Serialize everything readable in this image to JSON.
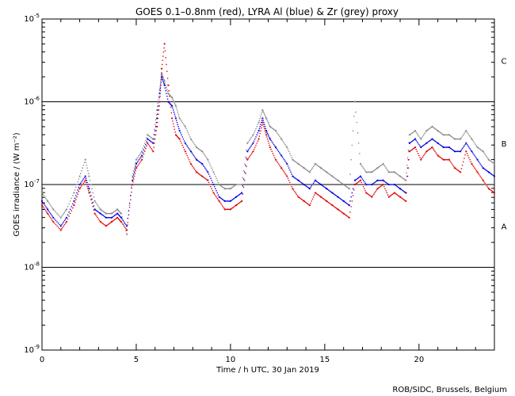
{
  "chart_data": {
    "type": "scatter",
    "title": "GOES 0.1–0.8nm (red), LYRA Al (blue) & Zr (grey) proxy",
    "xlabel": "Time / h UTC, 30 Jan 2019",
    "ylabel": "GOES irradiance / (W m⁻²)",
    "xlim": [
      0,
      24
    ],
    "ylim_log10": [
      -9,
      -5
    ],
    "x_ticks": [
      0,
      5,
      10,
      15,
      20
    ],
    "x_tick_labels": [
      "0",
      "5",
      "10",
      "15",
      "20"
    ],
    "y_ticks_log10": [
      -9,
      -8,
      -7,
      -6,
      -5
    ],
    "y_tick_labels": [
      {
        "base": "10",
        "exp": "-9"
      },
      {
        "base": "10",
        "exp": "-8"
      },
      {
        "base": "10",
        "exp": "-7"
      },
      {
        "base": "10",
        "exp": "-6"
      },
      {
        "base": "10",
        "exp": "-5"
      }
    ],
    "class_lines_log10": [
      -8,
      -7,
      -6
    ],
    "class_labels": [
      {
        "label": "A",
        "log10": -7.5
      },
      {
        "label": "B",
        "log10": -6.5
      },
      {
        "label": "C",
        "log10": -5.5
      }
    ],
    "series": [
      {
        "name": "GOES 0.1-0.8nm",
        "color": "#e00000",
        "x": [
          0,
          0.3,
          0.6,
          1.0,
          1.3,
          1.7,
          2.0,
          2.3,
          2.5,
          2.8,
          3.1,
          3.4,
          3.7,
          4.0,
          4.2,
          4.5,
          4.8,
          5.0,
          5.3,
          5.6,
          5.9,
          6.1,
          6.25,
          6.35,
          6.5,
          6.7,
          6.9,
          7.1,
          7.3,
          7.6,
          7.9,
          8.2,
          8.5,
          8.8,
          9.1,
          9.4,
          9.7,
          10.0,
          10.3,
          10.6,
          10.9,
          11.2,
          11.5,
          11.7,
          11.9,
          12.1,
          12.4,
          12.7,
          13.0,
          13.3,
          13.6,
          13.9,
          14.2,
          14.5,
          14.8,
          15.1,
          15.4,
          15.7,
          16.0,
          16.3,
          16.6,
          16.9,
          17.2,
          17.5,
          17.8,
          18.1,
          18.4,
          18.7,
          19.0,
          19.3,
          19.5,
          19.8,
          20.1,
          20.4,
          20.7,
          21.0,
          21.3,
          21.6,
          21.9,
          22.2,
          22.5,
          22.8,
          23.1,
          23.4,
          23.7,
          24.0
        ],
        "y_log10": [
          -7.25,
          -7.35,
          -7.45,
          -7.55,
          -7.45,
          -7.25,
          -7.05,
          -6.95,
          -7.1,
          -7.35,
          -7.45,
          -7.5,
          -7.45,
          -7.4,
          -7.45,
          -7.55,
          -7.0,
          -6.8,
          -6.7,
          -6.5,
          -6.6,
          -6.3,
          -6.0,
          -5.6,
          -5.3,
          -5.8,
          -6.2,
          -6.4,
          -6.45,
          -6.6,
          -6.75,
          -6.85,
          -6.9,
          -6.95,
          -7.1,
          -7.2,
          -7.3,
          -7.3,
          -7.25,
          -7.2,
          -6.7,
          -6.6,
          -6.45,
          -6.25,
          -6.4,
          -6.55,
          -6.7,
          -6.8,
          -6.9,
          -7.05,
          -7.15,
          -7.2,
          -7.25,
          -7.1,
          -7.15,
          -7.2,
          -7.25,
          -7.3,
          -7.35,
          -7.4,
          -7.0,
          -6.95,
          -7.1,
          -7.15,
          -7.05,
          -7.0,
          -7.15,
          -7.1,
          -7.15,
          -7.2,
          -6.6,
          -6.55,
          -6.7,
          -6.6,
          -6.55,
          -6.65,
          -6.7,
          -6.7,
          -6.8,
          -6.85,
          -6.6,
          -6.75,
          -6.85,
          -6.95,
          -7.05,
          -7.1
        ]
      },
      {
        "name": "LYRA Al proxy",
        "color": "#0000e0",
        "x": [
          0,
          0.3,
          0.6,
          1.0,
          1.3,
          1.7,
          2.0,
          2.3,
          2.5,
          2.8,
          3.1,
          3.4,
          3.7,
          4.0,
          4.2,
          4.5,
          4.8,
          5.0,
          5.3,
          5.6,
          5.9,
          6.1,
          6.25,
          6.35,
          6.5,
          6.7,
          6.9,
          7.1,
          7.3,
          7.6,
          7.9,
          8.2,
          8.5,
          8.8,
          9.1,
          9.4,
          9.7,
          10.0,
          10.3,
          10.6,
          10.9,
          11.2,
          11.5,
          11.7,
          11.9,
          12.1,
          12.4,
          12.7,
          13.0,
          13.3,
          13.6,
          13.9,
          14.2,
          14.5,
          14.8,
          15.1,
          15.4,
          15.7,
          16.0,
          16.3,
          16.6,
          16.9,
          17.2,
          17.5,
          17.8,
          18.1,
          18.4,
          18.7,
          19.0,
          19.3,
          19.5,
          19.8,
          20.1,
          20.4,
          20.7,
          21.0,
          21.3,
          21.6,
          21.9,
          22.2,
          22.5,
          22.8,
          23.1,
          23.4,
          23.7,
          24.0
        ],
        "y_log10": [
          -7.2,
          -7.3,
          -7.4,
          -7.5,
          -7.4,
          -7.2,
          -7.0,
          -6.9,
          -7.05,
          -7.3,
          -7.35,
          -7.4,
          -7.4,
          -7.35,
          -7.4,
          -7.5,
          -6.95,
          -6.75,
          -6.65,
          -6.45,
          -6.5,
          -6.2,
          -5.9,
          -5.7,
          -5.8,
          -6.0,
          -6.05,
          -6.2,
          -6.35,
          -6.5,
          -6.6,
          -6.7,
          -6.75,
          -6.85,
          -7.0,
          -7.15,
          -7.2,
          -7.2,
          -7.15,
          -7.1,
          -6.6,
          -6.5,
          -6.35,
          -6.2,
          -6.35,
          -6.45,
          -6.55,
          -6.65,
          -6.75,
          -6.9,
          -6.95,
          -7.0,
          -7.05,
          -6.95,
          -7.0,
          -7.05,
          -7.1,
          -7.15,
          -7.2,
          -7.25,
          -6.95,
          -6.9,
          -7.0,
          -7.0,
          -6.95,
          -6.95,
          -7.0,
          -7.0,
          -7.05,
          -7.1,
          -6.5,
          -6.45,
          -6.55,
          -6.5,
          -6.45,
          -6.5,
          -6.55,
          -6.55,
          -6.6,
          -6.6,
          -6.5,
          -6.6,
          -6.7,
          -6.8,
          -6.85,
          -6.9
        ]
      },
      {
        "name": "LYRA Zr proxy",
        "color": "#888888",
        "x": [
          0,
          0.3,
          0.6,
          1.0,
          1.3,
          1.7,
          2.0,
          2.3,
          2.5,
          2.8,
          3.1,
          3.4,
          3.7,
          4.0,
          4.2,
          4.5,
          4.8,
          5.0,
          5.3,
          5.6,
          5.9,
          6.1,
          6.25,
          6.35,
          6.5,
          6.7,
          6.9,
          7.1,
          7.3,
          7.6,
          7.9,
          8.2,
          8.5,
          8.8,
          9.1,
          9.4,
          9.7,
          10.0,
          10.3,
          10.6,
          10.9,
          11.2,
          11.5,
          11.7,
          11.9,
          12.1,
          12.4,
          12.7,
          13.0,
          13.3,
          13.6,
          13.9,
          14.2,
          14.5,
          14.8,
          15.1,
          15.4,
          15.7,
          16.0,
          16.3,
          16.6,
          16.9,
          17.2,
          17.5,
          17.8,
          18.1,
          18.4,
          18.7,
          19.0,
          19.3,
          19.5,
          19.8,
          20.1,
          20.4,
          20.7,
          21.0,
          21.3,
          21.6,
          21.9,
          22.2,
          22.5,
          22.8,
          23.1,
          23.4,
          23.7,
          24.0
        ],
        "y_log10": [
          -7.1,
          -7.2,
          -7.3,
          -7.4,
          -7.3,
          -7.1,
          -6.9,
          -6.7,
          -6.9,
          -7.2,
          -7.3,
          -7.35,
          -7.35,
          -7.3,
          -7.35,
          -7.6,
          -6.9,
          -6.7,
          -6.6,
          -6.4,
          -6.45,
          -6.1,
          -5.85,
          -5.65,
          -5.75,
          -5.9,
          -5.95,
          -6.05,
          -6.2,
          -6.3,
          -6.45,
          -6.55,
          -6.6,
          -6.7,
          -6.85,
          -7.0,
          -7.05,
          -7.05,
          -7.0,
          -7.0,
          -6.5,
          -6.4,
          -6.25,
          -6.1,
          -6.2,
          -6.3,
          -6.35,
          -6.45,
          -6.55,
          -6.7,
          -6.75,
          -6.8,
          -6.85,
          -6.75,
          -6.8,
          -6.85,
          -6.9,
          -6.95,
          -7.0,
          -7.05,
          -6.0,
          -6.75,
          -6.85,
          -6.85,
          -6.8,
          -6.75,
          -6.85,
          -6.85,
          -6.9,
          -6.95,
          -6.4,
          -6.35,
          -6.45,
          -6.35,
          -6.3,
          -6.35,
          -6.4,
          -6.4,
          -6.45,
          -6.45,
          -6.35,
          -6.45,
          -6.55,
          -6.6,
          -6.7,
          -6.75
        ]
      }
    ]
  },
  "footer": {
    "credit": "ROB/SIDC, Brussels, Belgium"
  }
}
